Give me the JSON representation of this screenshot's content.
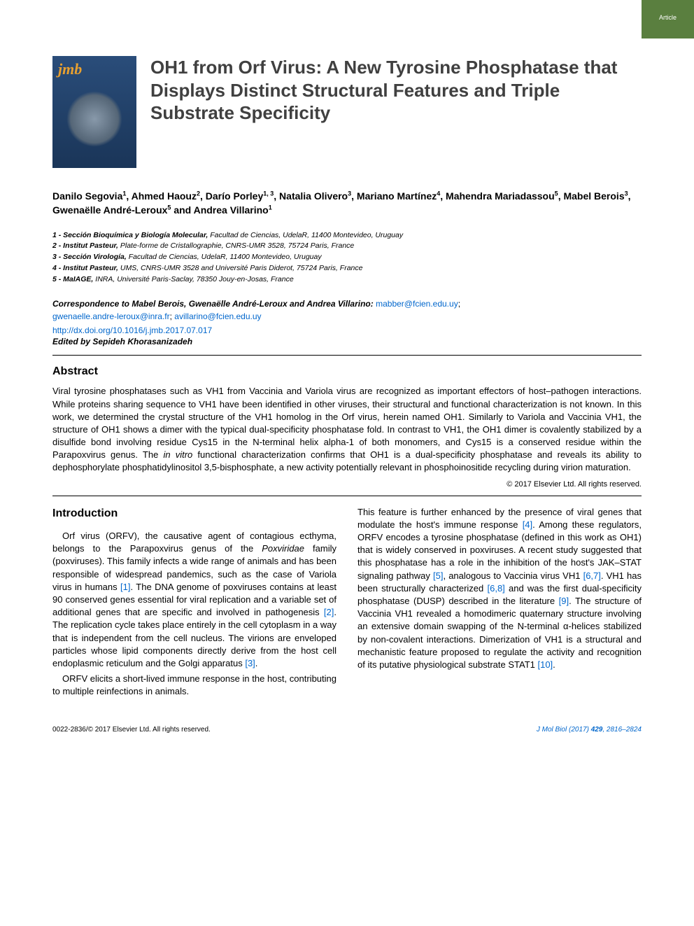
{
  "badge": "Article",
  "journal_thumb": {
    "label": "jmb"
  },
  "title": "OH1 from Orf Virus: A New Tyrosine Phosphatase that Displays Distinct Structural Features and Triple Substrate Specificity",
  "authors_html": "Danilo Segovia<sup>1</sup>, Ahmed Haouz<sup>2</sup>, Darío Porley<sup>1, 3</sup>, Natalia Olivero<sup>3</sup>, Mariano Martínez<sup>4</sup>, Mahendra Mariadassou<sup>5</sup>, Mabel Berois<sup>3</sup>, Gwenaëlle André-Leroux<sup>5</sup> and Andrea Villarino<sup>1</sup>",
  "affiliations": [
    {
      "num": "1",
      "inst": "Sección Bioquímica y Biología Molecular,",
      "rest": " Facultad de Ciencias, UdelaR, 11400 Montevideo, Uruguay"
    },
    {
      "num": "2",
      "inst": "Institut Pasteur,",
      "rest": " Plate-forme de Cristallographie, CNRS-UMR 3528, 75724 Paris, France"
    },
    {
      "num": "3",
      "inst": "Sección Virología,",
      "rest": " Facultad de Ciencias, UdelaR, 11400 Montevideo, Uruguay"
    },
    {
      "num": "4",
      "inst": "Institut Pasteur,",
      "rest": " UMS, CNRS-UMR 3528 and Université Paris Diderot, 75724 Paris, France"
    },
    {
      "num": "5",
      "inst": "MaIAGE,",
      "rest": " INRA, Université Paris-Saclay, 78350 Jouy-en-Josas, France"
    }
  ],
  "correspondence_label": "Correspondence to Mabel Berois, Gwenaëlle André-Leroux and Andrea Villarino:",
  "emails": [
    "mabber@fcien.edu.uy",
    "gwenaelle.andre-leroux@inra.fr",
    "avillarino@fcien.edu.uy"
  ],
  "doi": "http://dx.doi.org/10.1016/j.jmb.2017.07.017",
  "edited_by": "Edited by Sepideh Khorasanizadeh",
  "abstract_heading": "Abstract",
  "abstract_text": "Viral tyrosine phosphatases such as VH1 from Vaccinia and Variola virus are recognized as important effectors of host–pathogen interactions. While proteins sharing sequence to VH1 have been identified in other viruses, their structural and functional characterization is not known. In this work, we determined the crystal structure of the VH1 homolog in the Orf virus, herein named OH1. Similarly to Variola and Vaccinia VH1, the structure of OH1 shows a dimer with the typical dual-specificity phosphatase fold. In contrast to VH1, the OH1 dimer is covalently stabilized by a disulfide bond involving residue Cys15 in the N-terminal helix alpha-1 of both monomers, and Cys15 is a conserved residue within the Parapoxvirus genus. The <span class=\"italic\">in vitro</span> functional characterization confirms that OH1 is a dual-specificity phosphatase and reveals its ability to dephosphorylate phosphatidylinositol 3,5-bisphosphate, a new activity potentially relevant in phosphoinositide recycling during virion maturation.",
  "copyright": "© 2017 Elsevier Ltd. All rights reserved.",
  "intro_heading": "Introduction",
  "col1_p1": "Orf virus (ORFV), the causative agent of contagious ecthyma, belongs to the Parapoxvirus genus of the <span class=\"italic\">Poxviridae</span> family (poxviruses). This family infects a wide range of animals and has been responsible of widespread pandemics, such as the case of Variola virus in humans <span class=\"ref\">[1]</span>. The DNA genome of poxviruses contains at least 90 conserved genes essential for viral replication and a variable set of additional genes that are specific and involved in pathogenesis <span class=\"ref\">[2]</span>. The replication cycle takes place entirely in the cell cytoplasm in a way that is independent from the cell nucleus. The virions are enveloped particles whose lipid components directly derive from the host cell endoplasmic reticulum and the Golgi apparatus <span class=\"ref\">[3]</span>.",
  "col1_p2": "ORFV elicits a short-lived immune response in the host, contributing to multiple reinfections in animals.",
  "col2_p1": "This feature is further enhanced by the presence of viral genes that modulate the host's immune response <span class=\"ref\">[4]</span>. Among these regulators, ORFV encodes a tyrosine phosphatase (defined in this work as OH1) that is widely conserved in poxviruses. A recent study suggested that this phosphatase has a role in the inhibition of the host's JAK–STAT signaling pathway <span class=\"ref\">[5]</span>, analogous to Vaccinia virus VH1 <span class=\"ref\">[6,7]</span>. VH1 has been structurally characterized <span class=\"ref\">[6,8]</span> and was the first dual-specificity phosphatase (DUSP) described in the literature <span class=\"ref\">[9]</span>. The structure of Vaccinia VH1 revealed a homodimeric quaternary structure involving an extensive domain swapping of the N-terminal α-helices stabilized by non-covalent interactions. Dimerization of VH1 is a structural and mechanistic feature proposed to regulate the activity and recognition of its putative physiological substrate STAT1 <span class=\"ref\">[10]</span>.",
  "footer_left": "0022-2836/© 2017 Elsevier Ltd. All rights reserved.",
  "footer_right": "J Mol Biol (2017) <b>429</b>, 2816–2824",
  "colors": {
    "badge_bg": "#5a7f3f",
    "link": "#0066cc",
    "title": "#404040",
    "thumb_gradient_top": "#2a4d7a",
    "thumb_gradient_bottom": "#1a3558",
    "jmb_color": "#e8a030"
  },
  "typography": {
    "title_fontsize": 26,
    "authors_fontsize": 14,
    "affil_fontsize": 10.5,
    "body_fontsize": 13,
    "heading_fontsize": 16,
    "footer_fontsize": 10
  }
}
